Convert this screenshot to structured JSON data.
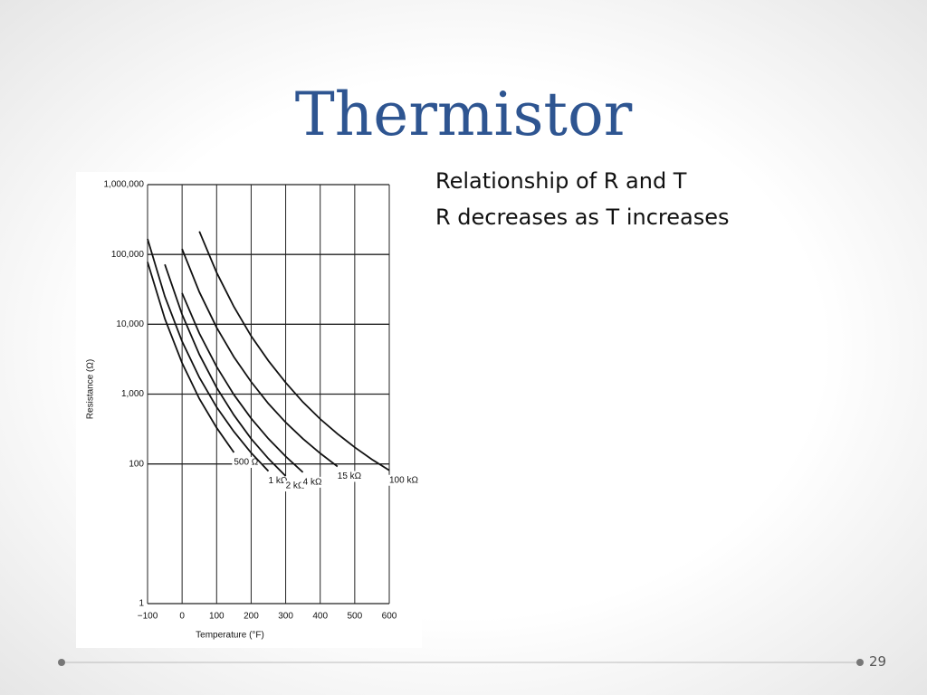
{
  "title": "Thermistor",
  "bullets": [
    "Relationship of R and T",
    "R decreases as T increases"
  ],
  "page_number": "29",
  "chart_data": {
    "type": "line",
    "x_label": "Temperature (°F)",
    "y_label": "Resistance (Ω)",
    "x": [
      -100,
      -50,
      0,
      50,
      100,
      150,
      200,
      250,
      300,
      350,
      400,
      450,
      500,
      550,
      600
    ],
    "xlim": [
      -100,
      600
    ],
    "xticks": [
      {
        "value": -100,
        "label": "−100"
      },
      0,
      100,
      200,
      300,
      400,
      500,
      600
    ],
    "ylim": [
      1,
      1000000
    ],
    "log_scale_y": true,
    "yticks": [
      1,
      100,
      {
        "value": 1000,
        "label": "1,000"
      },
      {
        "value": 10000,
        "label": "10,000"
      },
      {
        "value": 100000,
        "label": "100,000"
      },
      {
        "value": 1000000,
        "label": "1,000,000"
      }
    ],
    "grid": true,
    "series": [
      {
        "name": "500 Ω",
        "color": "#111111",
        "values": [
          78000,
          12000,
          2800,
          860,
          330,
          146,
          null,
          null,
          null,
          null,
          null,
          null,
          null,
          null,
          null
        ]
      },
      {
        "name": "1 kΩ",
        "color": "#111111",
        "values": [
          167000,
          25000,
          5700,
          1730,
          650,
          290,
          144,
          79,
          null,
          null,
          null,
          null,
          null,
          null,
          null
        ]
      },
      {
        "name": "2 kΩ",
        "color": "#111111",
        "values": [
          null,
          72000,
          13900,
          3700,
          1240,
          500,
          230,
          119,
          67,
          null,
          null,
          null,
          null,
          null,
          null
        ]
      },
      {
        "name": "4 kΩ",
        "color": "#111111",
        "values": [
          null,
          null,
          28000,
          7400,
          2470,
          980,
          450,
          230,
          128,
          76,
          null,
          null,
          null,
          null,
          null
        ]
      },
      {
        "name": "15 kΩ",
        "color": "#111111",
        "values": [
          null,
          null,
          120000,
          29000,
          9000,
          3400,
          1500,
          730,
          393,
          230,
          142,
          92,
          null,
          null,
          null
        ]
      },
      {
        "name": "100 kΩ",
        "color": "#111111",
        "values": [
          null,
          null,
          null,
          214000,
          55000,
          17800,
          6800,
          3000,
          1460,
          770,
          440,
          270,
          173,
          116,
          81
        ]
      }
    ]
  }
}
